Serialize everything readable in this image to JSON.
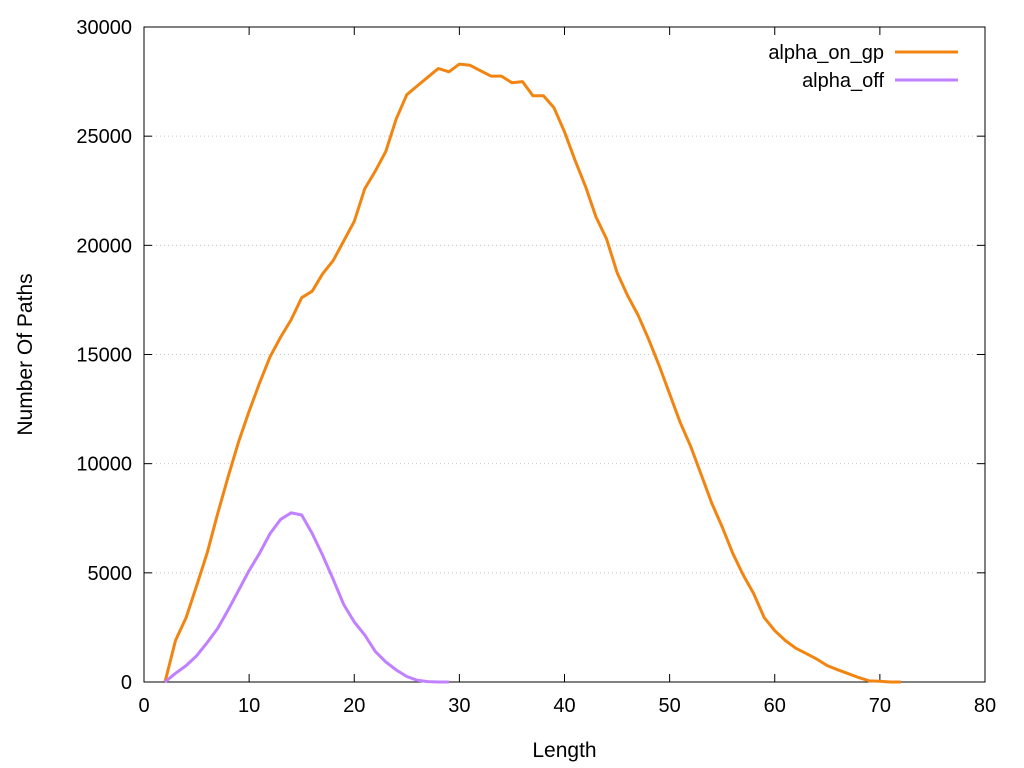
{
  "chart_data": {
    "type": "line",
    "title": "",
    "xlabel": "Length",
    "ylabel": "Number Of Paths",
    "xlim": [
      0,
      80
    ],
    "ylim": [
      0,
      30000
    ],
    "x_ticks": [
      0,
      10,
      20,
      30,
      40,
      50,
      60,
      70,
      80
    ],
    "y_ticks": [
      0,
      5000,
      10000,
      15000,
      20000,
      25000,
      30000
    ],
    "grid": "dotted horizontal",
    "legend_position": "top-right",
    "series": [
      {
        "name": "alpha_on_gp",
        "color": "#f28512",
        "x": [
          2,
          3,
          4,
          5,
          6,
          7,
          8,
          9,
          10,
          11,
          12,
          13,
          14,
          15,
          16,
          17,
          18,
          19,
          20,
          21,
          22,
          23,
          24,
          25,
          26,
          27,
          28,
          29,
          30,
          31,
          32,
          33,
          34,
          35,
          36,
          37,
          38,
          39,
          40,
          41,
          42,
          43,
          44,
          45,
          46,
          47,
          48,
          49,
          50,
          51,
          52,
          53,
          54,
          55,
          56,
          57,
          58,
          59,
          60,
          61,
          62,
          63,
          64,
          65,
          66,
          67,
          68,
          69,
          70,
          71,
          72
        ],
        "y": [
          0,
          1900,
          2950,
          4400,
          5900,
          7700,
          9400,
          11000,
          12400,
          13700,
          14900,
          15800,
          16600,
          17600,
          17900,
          18700,
          19300,
          20200,
          21100,
          22600,
          23400,
          24300,
          25800,
          26900,
          27300,
          27700,
          28100,
          27950,
          28300,
          28250,
          28000,
          27750,
          27750,
          27450,
          27500,
          26850,
          26850,
          26300,
          25200,
          23900,
          22700,
          21300,
          20300,
          18750,
          17700,
          16800,
          15700,
          14500,
          13200,
          11900,
          10800,
          9500,
          8200,
          7100,
          5900,
          4900,
          4050,
          2950,
          2350,
          1900,
          1550,
          1300,
          1050,
          750,
          560,
          380,
          200,
          50,
          30,
          0,
          0
        ]
      },
      {
        "name": "alpha_off",
        "color": "#c080ff",
        "x": [
          2,
          3,
          4,
          5,
          6,
          7,
          8,
          9,
          10,
          11,
          12,
          13,
          14,
          15,
          16,
          17,
          18,
          19,
          20,
          21,
          22,
          23,
          24,
          25,
          26,
          27,
          28,
          29
        ],
        "y": [
          0,
          400,
          750,
          1200,
          1800,
          2450,
          3300,
          4200,
          5100,
          5900,
          6800,
          7450,
          7750,
          7650,
          6800,
          5800,
          4700,
          3550,
          2750,
          2150,
          1400,
          920,
          550,
          250,
          80,
          20,
          0,
          0
        ]
      }
    ]
  }
}
